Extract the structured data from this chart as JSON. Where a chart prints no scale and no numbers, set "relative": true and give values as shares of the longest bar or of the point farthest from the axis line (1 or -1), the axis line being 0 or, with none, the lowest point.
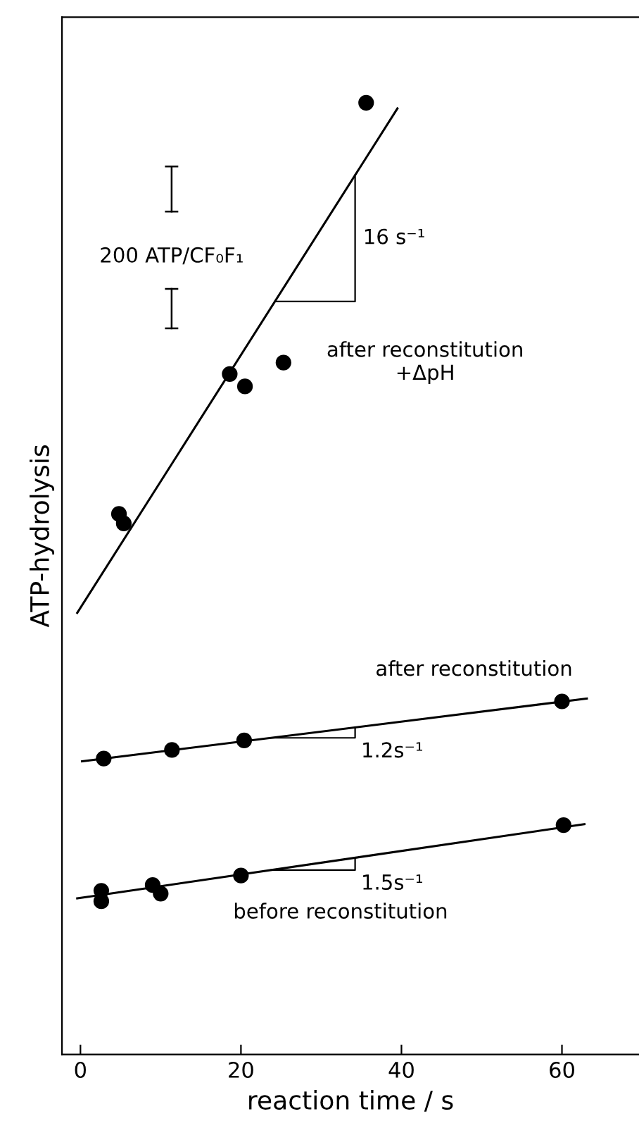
{
  "chart_data": {
    "type": "scatter",
    "relative": true,
    "xlabel": "reaction time / s",
    "ylabel": "ATP-hydrolysis",
    "xlim": [
      -2.3,
      69.6
    ],
    "xticks": [
      0,
      20,
      40,
      60
    ],
    "marker": "circle",
    "grid": false,
    "series": [
      {
        "name": "after reconstitution\n+ΔpH",
        "color": "#000000",
        "x": [
          35.6,
          18.6,
          20.5,
          25.3,
          4.8,
          5.4
        ],
        "values": [
          1.0,
          0.715,
          0.702,
          0.727,
          0.568,
          0.558
        ]
      },
      {
        "name": "after reconstitution",
        "color": "#000000",
        "x": [
          2.9,
          11.4,
          20.4,
          60.0
        ],
        "values": [
          0.311,
          0.32,
          0.33,
          0.371
        ]
      },
      {
        "name": "before reconstitution",
        "color": "#000000",
        "x": [
          2.6,
          2.6,
          9.0,
          10.0,
          20.0,
          60.2
        ],
        "values": [
          0.172,
          0.161,
          0.178,
          0.169,
          0.188,
          0.241
        ]
      },
      {
        "type": "line",
        "marker": "none",
        "color": "#000000",
        "x": [
          -0.4,
          39.5
        ],
        "values": [
          0.464,
          0.994
        ]
      },
      {
        "type": "line",
        "marker": "none",
        "color": "#000000",
        "x": [
          0.2,
          63.1
        ],
        "values": [
          0.308,
          0.374
        ]
      },
      {
        "type": "line",
        "marker": "none",
        "color": "#000000",
        "x": [
          -0.4,
          62.8
        ],
        "values": [
          0.164,
          0.242
        ]
      }
    ],
    "annotations": [
      "16 s⁻¹",
      "1.2s⁻¹",
      "1.5s⁻¹",
      "200 ATP/CF₀F₁"
    ]
  }
}
